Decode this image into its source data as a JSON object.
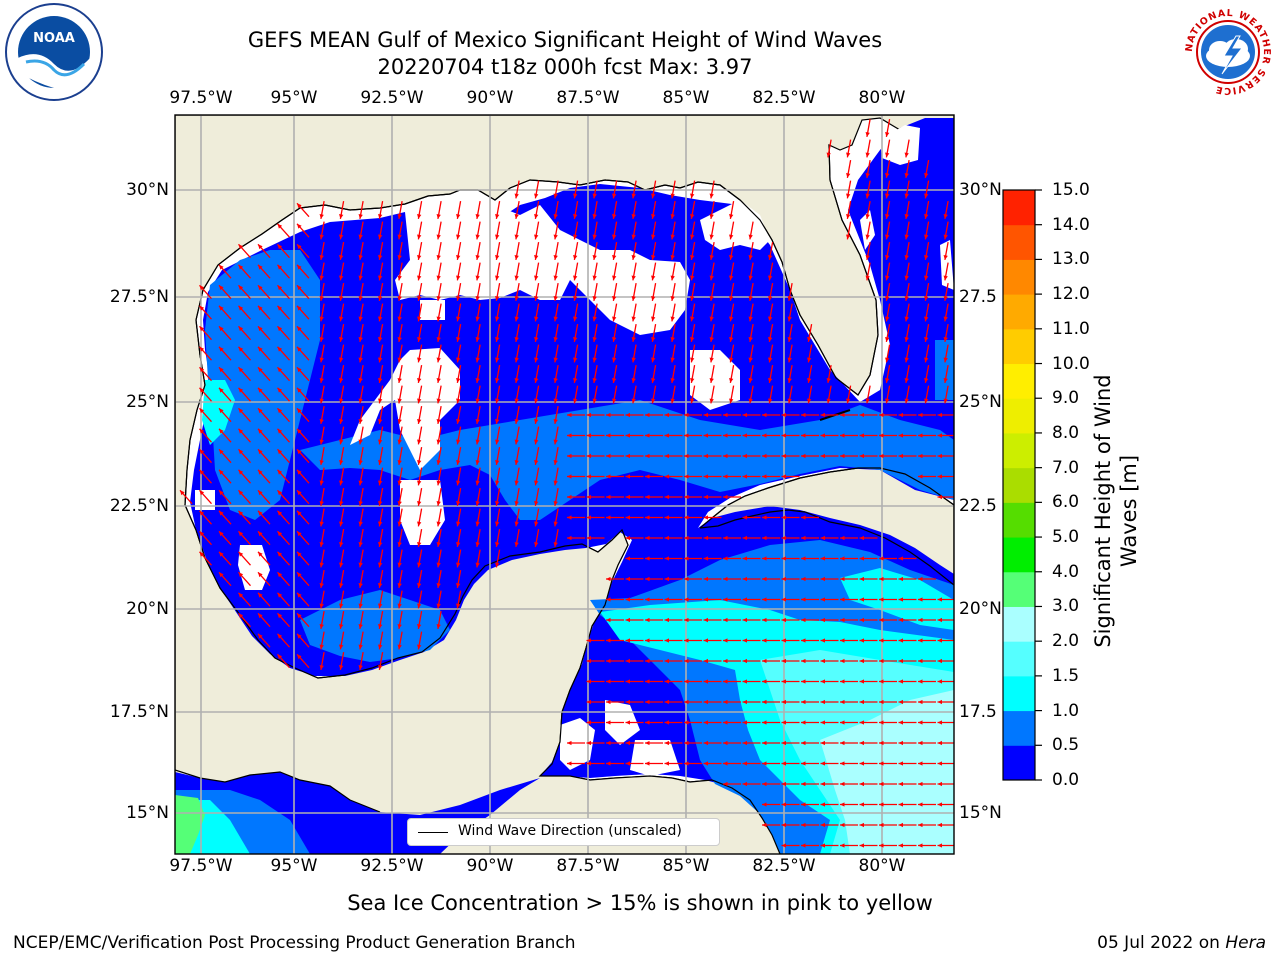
{
  "title": {
    "line1": "GEFS MEAN Gulf of Mexico Significant Height of Wind Waves",
    "line2": "20220704 t18z 000h fcst   Max: 3.97"
  },
  "logos": {
    "left": {
      "icon": "noaa-logo-icon",
      "text": "NOAA"
    },
    "right": {
      "icon": "national-weather-service-logo-icon",
      "text": "NATIONAL WEATHER SERVICE"
    }
  },
  "map": {
    "lon_labels": [
      "97.5°W",
      "95°W",
      "92.5°W",
      "90°W",
      "87.5°W",
      "85°W",
      "82.5°W",
      "80°W"
    ],
    "lat_labels_left": [
      "30°N",
      "27.5°N",
      "25°N",
      "22.5°N",
      "20°N",
      "17.5°N",
      "15°N"
    ],
    "lat_labels_right": [
      "30°N",
      "27.5",
      "25°N",
      "22.5",
      "20°N",
      "17.5",
      "15°N"
    ],
    "extent": {
      "lon_min": -98,
      "lon_max": -78.2,
      "lat_min": 14.0,
      "lat_max": 31.8
    },
    "gridlines": true,
    "land_color": "#efedda",
    "ocean_no_data_color": "#ffffff",
    "arrow_color": "#ff0000",
    "legend": {
      "label": "Wind Wave Direction (unscaled)"
    }
  },
  "colorbar": {
    "label": "Significant Height of Wind Waves [m]",
    "ticks": [
      "0.0",
      "0.5",
      "1.0",
      "1.5",
      "2.0",
      "3.0",
      "4.0",
      "5.0",
      "6.0",
      "7.0",
      "8.0",
      "9.0",
      "10.0",
      "11.0",
      "12.0",
      "13.0",
      "14.0",
      "15.0"
    ],
    "colors": [
      "#0000ff",
      "#0077ff",
      "#00ffff",
      "#55ffff",
      "#aaffff",
      "#55ff77",
      "#00ee00",
      "#55dd00",
      "#aadd00",
      "#ccee00",
      "#eeee00",
      "#ffee00",
      "#ffcc00",
      "#ffaa00",
      "#ff8800",
      "#ff5500",
      "#ff2200"
    ]
  },
  "note": "Sea Ice Concentration > 15% is shown in pink to yellow",
  "footer": {
    "left": "NCEP/EMC/Verification Post Processing Product Generation Branch",
    "right_date": "05 Jul 2022 on ",
    "right_machine": "Hera"
  }
}
